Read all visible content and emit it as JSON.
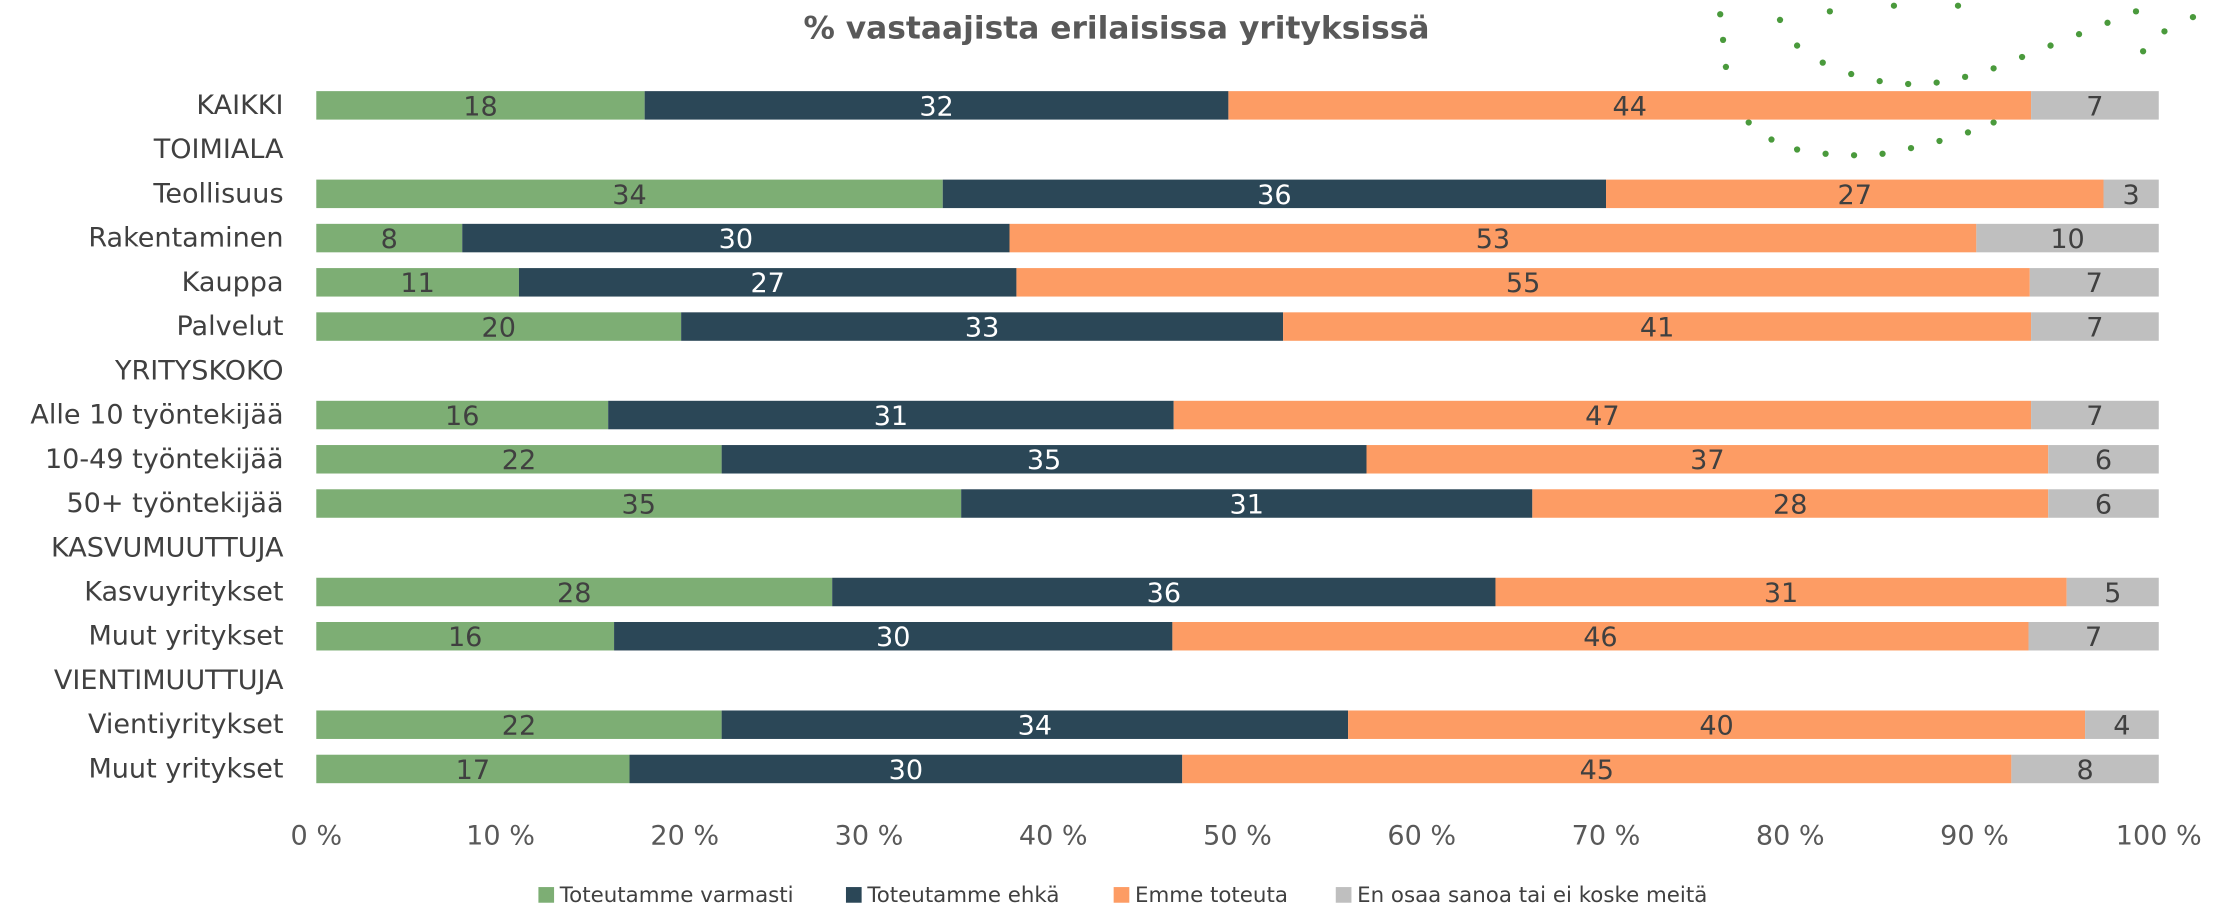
{
  "chart_data": {
    "type": "bar",
    "orientation": "horizontal",
    "stacked": "percent",
    "title": "% vastaajista erilaisissa yrityksissä",
    "categories": [
      "KAIKKI",
      "TOIMIALA",
      "Teollisuus",
      "Rakentaminen",
      "Kauppa",
      "Palvelut",
      "YRITYSKOKO",
      "Alle 10 työntekijää",
      "10-49 työntekijää",
      "50+ työntekijää",
      "KASVUMUUTTUJA",
      "Kasvuyritykset",
      "Muut yritykset",
      "VIENTIMUUTTUJA",
      "Vientiyritykset",
      "Muut yritykset"
    ],
    "series": [
      {
        "name": "Toteutamme varmasti",
        "color": "#7dae74",
        "label_color": "#404040",
        "values": [
          18,
          null,
          34,
          8,
          11,
          20,
          null,
          16,
          22,
          35,
          null,
          28,
          16,
          null,
          22,
          17
        ]
      },
      {
        "name": "Toteutamme ehkä",
        "color": "#2b4757",
        "label_color": "#ffffff",
        "values": [
          32,
          null,
          36,
          30,
          27,
          33,
          null,
          31,
          35,
          31,
          null,
          36,
          30,
          null,
          34,
          30
        ]
      },
      {
        "name": "Emme toteuta",
        "color": "#fd9c64",
        "label_color": "#404040",
        "values": [
          44,
          null,
          27,
          53,
          55,
          41,
          null,
          47,
          37,
          28,
          null,
          31,
          46,
          null,
          40,
          45
        ]
      },
      {
        "name": "En osaa sanoa tai ei koske meitä",
        "color": "#bfbfbf",
        "label_color": "#404040",
        "values": [
          7,
          null,
          3,
          10,
          7,
          7,
          null,
          7,
          6,
          6,
          null,
          5,
          7,
          null,
          4,
          8
        ]
      }
    ],
    "xlim": [
      0,
      100
    ],
    "xticks": [
      {
        "value": 0,
        "label": "0 %"
      },
      {
        "value": 10,
        "label": "10 %"
      },
      {
        "value": 20,
        "label": "20 %"
      },
      {
        "value": 30,
        "label": "30 %"
      },
      {
        "value": 40,
        "label": "40 %"
      },
      {
        "value": 50,
        "label": "50 %"
      },
      {
        "value": 60,
        "label": "60 %"
      },
      {
        "value": 70,
        "label": "70 %"
      },
      {
        "value": 80,
        "label": "80 %"
      },
      {
        "value": 90,
        "label": "90 %"
      },
      {
        "value": 100,
        "label": "100 %"
      }
    ],
    "legend": "bottom"
  }
}
